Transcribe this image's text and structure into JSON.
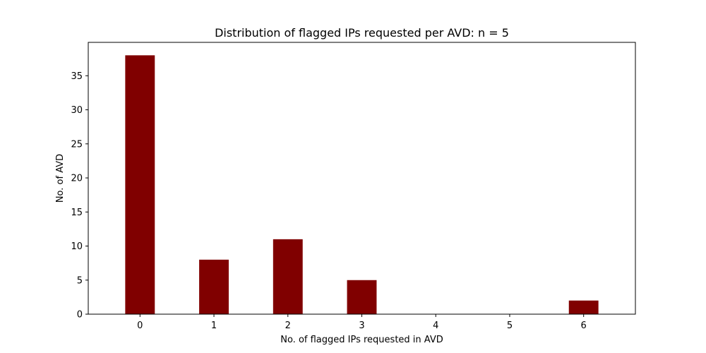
{
  "chart_data": {
    "type": "bar",
    "title": "Distribution of flagged IPs requested per AVD: n = 5",
    "xlabel": "No. of flagged IPs requested in AVD",
    "ylabel": "No. of AVD",
    "categories": [
      "0",
      "1",
      "2",
      "3",
      "4",
      "5",
      "6"
    ],
    "x": [
      0,
      1,
      2,
      3,
      4,
      5,
      6
    ],
    "values": [
      38,
      8,
      11,
      5,
      0,
      0,
      2
    ],
    "xlim": [
      -0.7,
      6.7
    ],
    "ylim": [
      0,
      39.9
    ],
    "xticks": [
      0,
      1,
      2,
      3,
      4,
      5,
      6
    ],
    "yticks": [
      0,
      5,
      10,
      15,
      20,
      25,
      30,
      35
    ],
    "bar_color": "#800000",
    "grid": false,
    "legend": "none"
  }
}
